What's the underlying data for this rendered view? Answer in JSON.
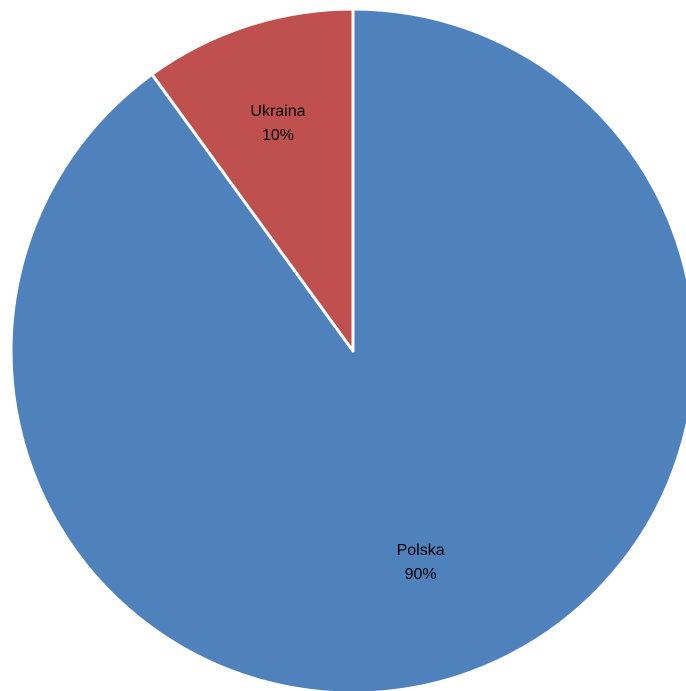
{
  "chart_data": {
    "type": "pie",
    "title": "",
    "start": "top",
    "direction": "clockwise",
    "legend": "none",
    "slices": [
      {
        "label": "Polska",
        "value": 90,
        "value_label": "90%",
        "color": "#4F81BD"
      },
      {
        "label": "Ukraina",
        "value": 10,
        "value_label": "10%",
        "color": "#C0504D"
      }
    ]
  }
}
